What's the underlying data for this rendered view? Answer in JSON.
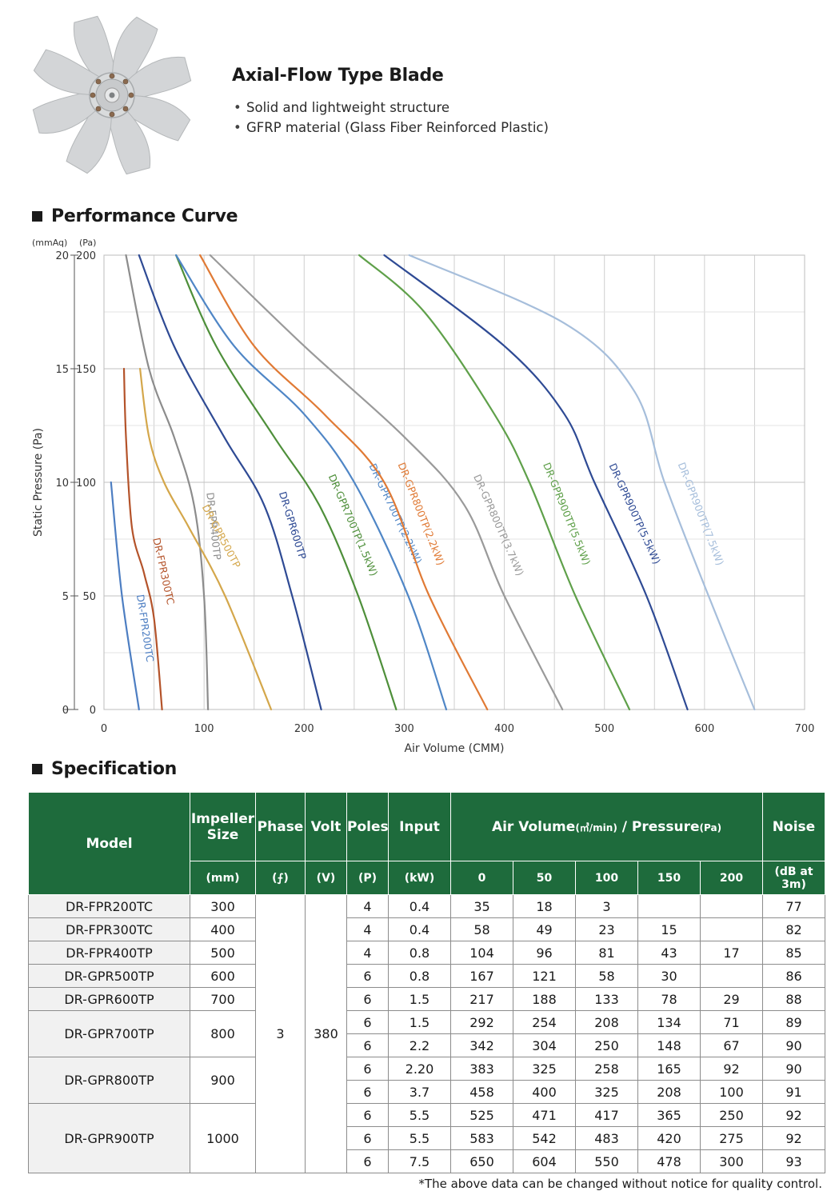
{
  "header": {
    "title": "Axial-Flow Type Blade",
    "features": [
      "Solid and lightweight structure",
      "GFRP material (Glass Fiber Reinforced Plastic)"
    ]
  },
  "sections": {
    "performance": "Performance Curve",
    "specification": "Specification"
  },
  "chart_data": {
    "type": "line",
    "title": "Performance Curve",
    "xlabel": "Air Volume (CMM)",
    "ylabel": "Static Pressure (Pa)",
    "y_unit_left": "(mmAq)",
    "y_unit_right": "(Pa)",
    "xlim": [
      0,
      700
    ],
    "ylim": [
      0,
      200
    ],
    "xticks": [
      "0",
      "100",
      "200",
      "300",
      "400",
      "500",
      "600",
      "700"
    ],
    "yticks_pa": [
      "0",
      "50",
      "100",
      "150",
      "200"
    ],
    "yticks_mmaq": [
      "0",
      "5",
      "10",
      "15",
      "20"
    ],
    "grid": true,
    "series": [
      {
        "name": "DR-FPR200TC",
        "color": "#4d7ec2",
        "x": [
          7,
          18,
          35
        ],
        "y": [
          100,
          50,
          0
        ]
      },
      {
        "name": "DR-FPR300TC",
        "color": "#b4532a",
        "x": [
          20,
          22,
          28,
          40,
          50,
          58
        ],
        "y": [
          150,
          120,
          80,
          60,
          40,
          0
        ]
      },
      {
        "name": "DR-FPR400TP",
        "color": "#8c8c8c",
        "x": [
          22,
          45,
          70,
          90,
          100,
          104
        ],
        "y": [
          200,
          150,
          120,
          90,
          50,
          0
        ]
      },
      {
        "name": "DR-GPR500TP",
        "color": "#d4a74b",
        "x": [
          36,
          45,
          60,
          85,
          121,
          167
        ],
        "y": [
          150,
          120,
          100,
          80,
          50,
          0
        ]
      },
      {
        "name": "DR-GPR600TP",
        "color": "#2e4a94",
        "x": [
          35,
          70,
          120,
          160,
          188,
          217
        ],
        "y": [
          200,
          160,
          120,
          90,
          50,
          0
        ]
      },
      {
        "name": "DR-GPR700TP(1.5kW)",
        "color": "#4e8f3a",
        "x": [
          72,
          112,
          170,
          215,
          254,
          292
        ],
        "y": [
          200,
          160,
          120,
          90,
          50,
          0
        ]
      },
      {
        "name": "DR-GPR700TP(2.2kW)",
        "color": "#4f86c6",
        "x": [
          72,
          130,
          200,
          250,
          304,
          342
        ],
        "y": [
          200,
          160,
          130,
          100,
          50,
          0
        ]
      },
      {
        "name": "DR-GPR800TP(2.2kW)",
        "color": "#e07a35",
        "x": [
          96,
          150,
          220,
          280,
          325,
          383
        ],
        "y": [
          200,
          160,
          130,
          100,
          50,
          0
        ]
      },
      {
        "name": "DR-GPR800TP(3.7kW)",
        "color": "#9a9a9a",
        "x": [
          106,
          200,
          300,
          360,
          400,
          458
        ],
        "y": [
          200,
          160,
          120,
          90,
          50,
          0
        ]
      },
      {
        "name": "DR-GPR900TP(5.5kW)",
        "color": "#5fa04a",
        "x": [
          255,
          320,
          390,
          425,
          471,
          525
        ],
        "y": [
          200,
          175,
          130,
          100,
          50,
          0
        ]
      },
      {
        "name": "DR-GPR900TP(5.5kW)",
        "color": "#2e4a94",
        "x": [
          280,
          400,
          460,
          490,
          542,
          583
        ],
        "y": [
          200,
          160,
          130,
          100,
          50,
          0
        ]
      },
      {
        "name": "DR-GPR900TP(7.5kW)",
        "color": "#a6bedb",
        "x": [
          305,
          460,
          530,
          560,
          604,
          650
        ],
        "y": [
          200,
          170,
          140,
          100,
          50,
          0
        ]
      }
    ]
  },
  "spec": {
    "headers": {
      "model": "Model",
      "impeller": "Impeller Size",
      "phase": "Phase",
      "volt": "Volt",
      "poles": "Poles",
      "input": "Input",
      "airvol_main": "Air Volume",
      "airvol_unit": "(㎥/min)",
      "slash": " / ",
      "pressure_main": "Pressure",
      "pressure_unit": "(Pa)",
      "noise": "Noise"
    },
    "units": {
      "impeller": "(mm)",
      "phase": "(⨍)",
      "volt": "(V)",
      "poles": "(P)",
      "input": "(kW)",
      "p0": "0",
      "p50": "50",
      "p100": "100",
      "p150": "150",
      "p200": "200",
      "noise": "(dB at 3m)"
    },
    "phase": "3",
    "volt": "380",
    "rows": [
      {
        "model": "DR-FPR200TC",
        "size": "300",
        "poles": "4",
        "input": "0.4",
        "v0": "35",
        "v50": "18",
        "v100": "3",
        "v150": "",
        "v200": "",
        "noise": "77"
      },
      {
        "model": "DR-FPR300TC",
        "size": "400",
        "poles": "4",
        "input": "0.4",
        "v0": "58",
        "v50": "49",
        "v100": "23",
        "v150": "15",
        "v200": "",
        "noise": "82"
      },
      {
        "model": "DR-FPR400TP",
        "size": "500",
        "poles": "4",
        "input": "0.8",
        "v0": "104",
        "v50": "96",
        "v100": "81",
        "v150": "43",
        "v200": "17",
        "noise": "85"
      },
      {
        "model": "DR-GPR500TP",
        "size": "600",
        "poles": "6",
        "input": "0.8",
        "v0": "167",
        "v50": "121",
        "v100": "58",
        "v150": "30",
        "v200": "",
        "noise": "86"
      },
      {
        "model": "DR-GPR600TP",
        "size": "700",
        "poles": "6",
        "input": "1.5",
        "v0": "217",
        "v50": "188",
        "v100": "133",
        "v150": "78",
        "v200": "29",
        "noise": "88"
      },
      {
        "model": "DR-GPR700TP",
        "size": "800",
        "poles": "6",
        "input": "1.5",
        "v0": "292",
        "v50": "254",
        "v100": "208",
        "v150": "134",
        "v200": "71",
        "noise": "89"
      },
      {
        "model": "",
        "size": "",
        "poles": "6",
        "input": "2.2",
        "v0": "342",
        "v50": "304",
        "v100": "250",
        "v150": "148",
        "v200": "67",
        "noise": "90"
      },
      {
        "model": "DR-GPR800TP",
        "size": "900",
        "poles": "6",
        "input": "2.20",
        "v0": "383",
        "v50": "325",
        "v100": "258",
        "v150": "165",
        "v200": "92",
        "noise": "90"
      },
      {
        "model": "",
        "size": "",
        "poles": "6",
        "input": "3.7",
        "v0": "458",
        "v50": "400",
        "v100": "325",
        "v150": "208",
        "v200": "100",
        "noise": "91"
      },
      {
        "model": "DR-GPR900TP",
        "size": "1000",
        "poles": "6",
        "input": "5.5",
        "v0": "525",
        "v50": "471",
        "v100": "417",
        "v150": "365",
        "v200": "250",
        "noise": "92"
      },
      {
        "model": "",
        "size": "",
        "poles": "6",
        "input": "5.5",
        "v0": "583",
        "v50": "542",
        "v100": "483",
        "v150": "420",
        "v200": "275",
        "noise": "92"
      },
      {
        "model": "",
        "size": "",
        "poles": "6",
        "input": "7.5",
        "v0": "650",
        "v50": "604",
        "v100": "550",
        "v150": "478",
        "v200": "300",
        "noise": "93"
      }
    ],
    "footnote": "*The above data can be changed without notice for quality control."
  }
}
